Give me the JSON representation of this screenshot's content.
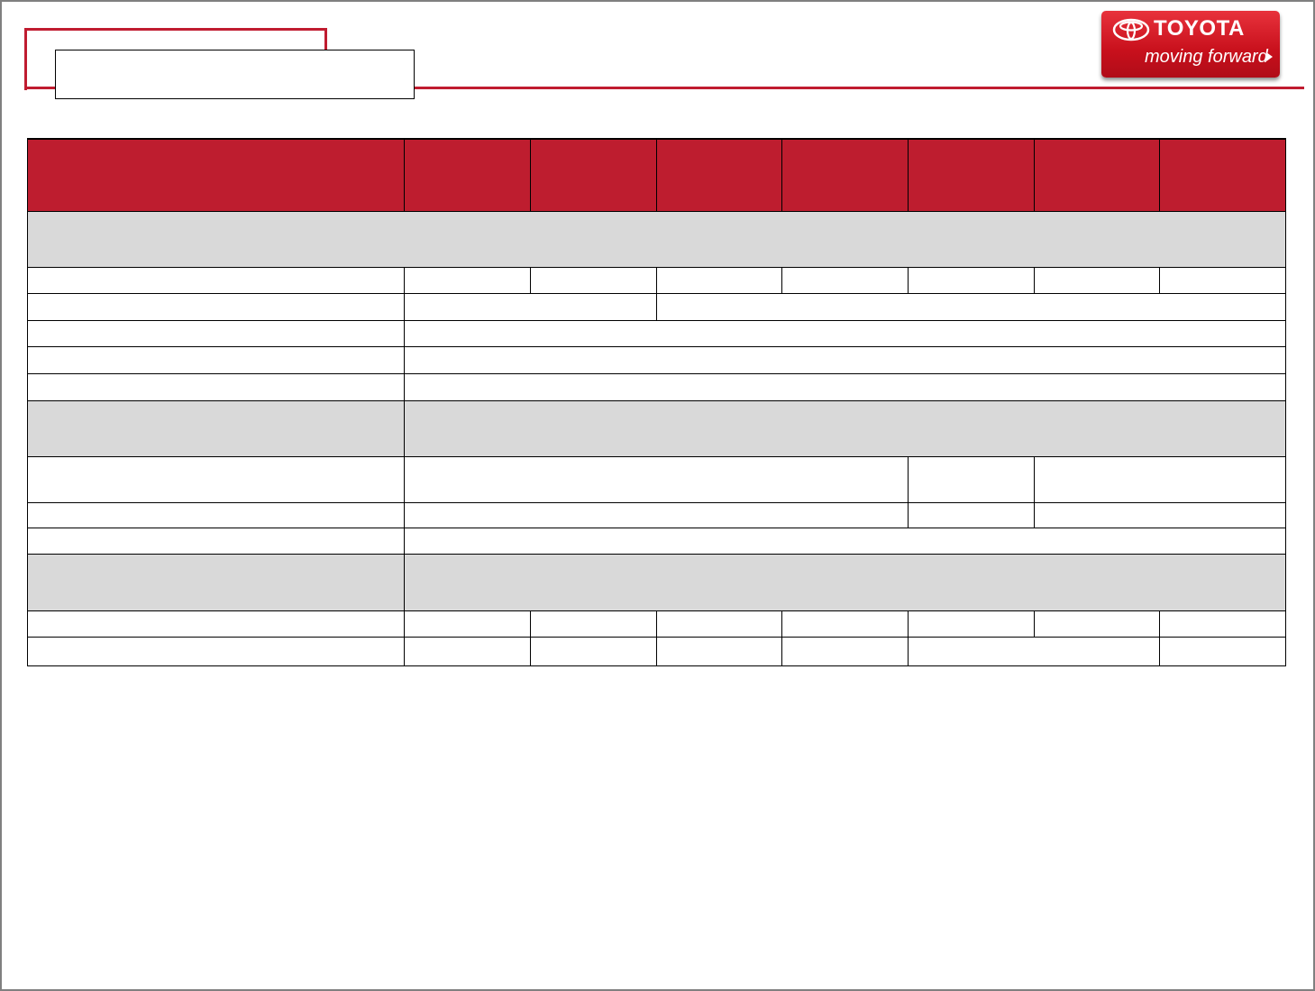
{
  "page": {
    "title": ""
  },
  "logo": {
    "brand": "TOYOTA",
    "tagline": "moving forward",
    "icon": "toyota-emblem-icon",
    "arrow_icon": "triangle-right-icon",
    "color": "#c8101c"
  },
  "colors": {
    "accent": "#be1d2f",
    "section_gray": "#d9d9d9"
  },
  "table": {
    "header": [
      "",
      "",
      "",
      "",
      "",
      "",
      "",
      ""
    ],
    "rows": []
  }
}
